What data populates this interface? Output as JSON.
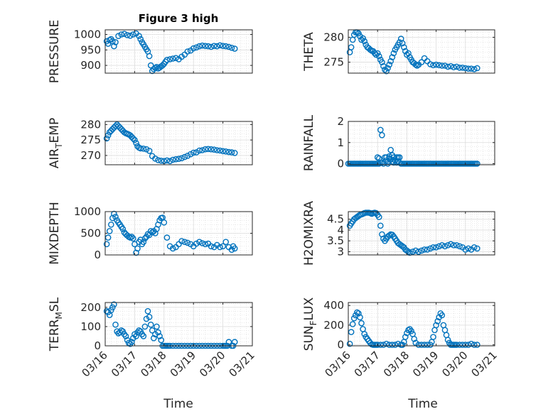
{
  "figure": {
    "title": "Figure 3 high",
    "xlabel": "Time",
    "xticks": [
      "03/16",
      "03/17",
      "03/18",
      "03/19",
      "03/20",
      "03/21"
    ],
    "marker_color": "#0072BD",
    "grid": true,
    "minor_grid": true
  },
  "chart_data": [
    {
      "type": "scatter",
      "id": "pressure",
      "ylabel": "PRESSURE",
      "ylim": [
        875,
        1015
      ],
      "yticks": [
        900,
        950,
        1000
      ],
      "xlim": [
        0,
        5
      ],
      "x": [
        0.05,
        0.1,
        0.15,
        0.2,
        0.25,
        0.3,
        0.35,
        0.45,
        0.55,
        0.65,
        0.75,
        0.85,
        0.95,
        1.05,
        1.15,
        1.2,
        1.25,
        1.3,
        1.35,
        1.4,
        1.45,
        1.5,
        1.55,
        1.6,
        1.65,
        1.7,
        1.75,
        1.8,
        1.85,
        1.9,
        1.95,
        2.0,
        2.05,
        2.1,
        2.2,
        2.3,
        2.4,
        2.5,
        2.6,
        2.7,
        2.8,
        2.9,
        3.0,
        3.1,
        3.2,
        3.3,
        3.4,
        3.5,
        3.6,
        3.7,
        3.8,
        3.9,
        4.0,
        4.1,
        4.2,
        4.3,
        4.4
      ],
      "y": [
        978,
        970,
        982,
        985,
        978,
        962,
        975,
        995,
        1000,
        1002,
        998,
        996,
        1000,
        1003,
        995,
        985,
        975,
        968,
        960,
        952,
        945,
        930,
        900,
        882,
        888,
        892,
        895,
        890,
        893,
        897,
        900,
        905,
        912,
        918,
        920,
        922,
        924,
        920,
        928,
        935,
        945,
        948,
        955,
        958,
        962,
        964,
        963,
        962,
        960,
        963,
        962,
        965,
        963,
        962,
        960,
        957,
        954
      ]
    },
    {
      "type": "scatter",
      "id": "theta",
      "ylabel": "THETA",
      "ylim": [
        272.8,
        281.5
      ],
      "yticks": [
        275,
        280
      ],
      "xlim": [
        0,
        5
      ],
      "x": [
        0.05,
        0.1,
        0.15,
        0.2,
        0.25,
        0.3,
        0.35,
        0.4,
        0.45,
        0.5,
        0.55,
        0.6,
        0.65,
        0.7,
        0.75,
        0.8,
        0.85,
        0.9,
        0.95,
        1.0,
        1.05,
        1.1,
        1.15,
        1.2,
        1.25,
        1.3,
        1.35,
        1.4,
        1.45,
        1.5,
        1.55,
        1.6,
        1.65,
        1.7,
        1.75,
        1.8,
        1.85,
        1.9,
        1.95,
        2.0,
        2.05,
        2.1,
        2.15,
        2.2,
        2.25,
        2.3,
        2.35,
        2.4,
        2.5,
        2.6,
        2.7,
        2.8,
        2.9,
        3.0,
        3.1,
        3.2,
        3.3,
        3.4,
        3.5,
        3.6,
        3.7,
        3.8,
        3.9,
        4.0,
        4.1,
        4.2,
        4.3,
        4.4
      ],
      "y": [
        277,
        278,
        279.5,
        280.5,
        281,
        281,
        280.8,
        280.2,
        279.5,
        279.8,
        279.2,
        278.5,
        278,
        277.8,
        277.5,
        277.3,
        277.2,
        276.8,
        276.5,
        276.8,
        276.2,
        275.5,
        275,
        274.2,
        273.5,
        273.2,
        273.8,
        274.5,
        275.2,
        276,
        276.8,
        277.5,
        278,
        278.5,
        279,
        279.7,
        278.8,
        278,
        277.2,
        276.5,
        276.8,
        276,
        275.5,
        275,
        274.8,
        274.5,
        274.3,
        274.5,
        275,
        275.8,
        275.2,
        274.6,
        274.4,
        274.5,
        274.4,
        274.3,
        274.3,
        274.1,
        274.2,
        274.0,
        274.1,
        273.9,
        273.9,
        273.8,
        273.7,
        273.7,
        273.6,
        273.8
      ]
    },
    {
      "type": "scatter",
      "id": "air_temp",
      "ylabel": "AIR",
      "ylabel_sub": "T",
      "ylabel_end": "EMP",
      "ylim": [
        267,
        281
      ],
      "yticks": [
        270,
        275,
        280
      ],
      "xlim": [
        0,
        5
      ],
      "x": [
        0.05,
        0.1,
        0.15,
        0.2,
        0.25,
        0.3,
        0.35,
        0.4,
        0.45,
        0.5,
        0.55,
        0.6,
        0.65,
        0.7,
        0.75,
        0.8,
        0.85,
        0.9,
        0.95,
        1.0,
        1.05,
        1.1,
        1.15,
        1.2,
        1.3,
        1.4,
        1.5,
        1.6,
        1.7,
        1.8,
        1.9,
        2.0,
        2.1,
        2.2,
        2.3,
        2.4,
        2.5,
        2.6,
        2.7,
        2.8,
        2.9,
        3.0,
        3.1,
        3.2,
        3.3,
        3.4,
        3.5,
        3.6,
        3.7,
        3.8,
        3.9,
        4.0,
        4.1,
        4.2,
        4.3,
        4.4
      ],
      "y": [
        275.5,
        276.5,
        277.5,
        278,
        278.5,
        279,
        279.5,
        280,
        279.5,
        279,
        278.5,
        278,
        277.5,
        277.2,
        277,
        276.8,
        276.5,
        276,
        275.5,
        275,
        274,
        273,
        272.5,
        272.3,
        272.2,
        272,
        271.5,
        269.8,
        269,
        268.5,
        268.3,
        268.2,
        268.4,
        268.2,
        268.6,
        268.8,
        268.9,
        269.1,
        269.5,
        269.9,
        270.4,
        270.9,
        271,
        271.6,
        271.7,
        272,
        272.1,
        272,
        271.9,
        271.7,
        271.6,
        271.4,
        271.3,
        271.1,
        271,
        270.8
      ]
    },
    {
      "type": "scatter",
      "id": "rainfall",
      "ylabel": "RAINFALL",
      "ylim": [
        -0.05,
        2
      ],
      "yticks": [
        0,
        1,
        2
      ],
      "xlim": [
        0,
        5
      ],
      "x": [
        0.0,
        0.05,
        0.1,
        0.15,
        0.2,
        0.25,
        0.3,
        0.35,
        0.4,
        0.45,
        0.5,
        0.55,
        0.6,
        0.65,
        0.7,
        0.75,
        0.8,
        0.85,
        0.9,
        0.95,
        1.0,
        1.05,
        1.1,
        1.15,
        1.2,
        1.25,
        1.3,
        1.35,
        1.4,
        1.45,
        1.5,
        1.55,
        1.6,
        1.65,
        1.7,
        1.75,
        1.8,
        1.85,
        1.9,
        1.95,
        2.0,
        2.05,
        2.1,
        2.15,
        2.2,
        2.25,
        2.3,
        2.35,
        2.4,
        2.45,
        2.5,
        2.55,
        2.6,
        2.65,
        2.7,
        2.75,
        2.8,
        2.85,
        2.9,
        2.95,
        3.0,
        3.05,
        3.1,
        3.15,
        3.2,
        3.25,
        3.3,
        3.35,
        3.4,
        3.45,
        3.5,
        3.55,
        3.6,
        3.65,
        3.7,
        3.75,
        3.8,
        3.85,
        3.9,
        3.95,
        4.0,
        4.05,
        4.1,
        4.15,
        4.2,
        4.25,
        4.3,
        4.35,
        4.4,
        1.0,
        1.05,
        1.1,
        1.15,
        1.3,
        1.35,
        1.4,
        1.45,
        1.5,
        1.55,
        1.6,
        1.65,
        1.7,
        1.75
      ],
      "y": [
        0,
        0,
        0,
        0,
        0,
        0,
        0,
        0,
        0,
        0,
        0,
        0,
        0,
        0,
        0,
        0,
        0,
        0,
        0,
        0,
        0,
        0,
        1.6,
        1.35,
        0,
        0.3,
        0.3,
        0,
        0.35,
        0.65,
        0.4,
        0.3,
        0.15,
        0.3,
        0.3,
        0.3,
        0,
        0,
        0,
        0,
        0,
        0,
        0,
        0,
        0,
        0,
        0,
        0,
        0,
        0,
        0,
        0,
        0,
        0,
        0,
        0,
        0,
        0,
        0,
        0,
        0,
        0,
        0,
        0,
        0,
        0,
        0,
        0,
        0,
        0,
        0,
        0,
        0,
        0,
        0,
        0,
        0,
        0,
        0,
        0,
        0,
        0,
        0,
        0,
        0,
        0,
        0,
        0,
        0,
        0.3,
        0.25,
        0.05,
        0.05,
        0.15,
        0.1,
        0.25,
        0.2,
        0.1,
        0.05,
        0.15,
        0.05,
        0.1,
        0.05
      ]
    },
    {
      "type": "scatter",
      "id": "mixdepth",
      "ylabel": "MIXDEPTH",
      "ylim": [
        0,
        1000
      ],
      "yticks": [
        0,
        500,
        1000
      ],
      "xlim": [
        0,
        5
      ],
      "x": [
        0.05,
        0.1,
        0.15,
        0.2,
        0.25,
        0.3,
        0.35,
        0.4,
        0.45,
        0.5,
        0.55,
        0.6,
        0.65,
        0.7,
        0.75,
        0.8,
        0.85,
        0.9,
        0.95,
        1.0,
        1.05,
        1.1,
        1.15,
        1.2,
        1.25,
        1.3,
        1.35,
        1.4,
        1.45,
        1.5,
        1.55,
        1.6,
        1.65,
        1.7,
        1.75,
        1.8,
        1.85,
        1.9,
        1.95,
        2.0,
        2.1,
        2.2,
        2.3,
        2.4,
        2.5,
        2.6,
        2.7,
        2.8,
        2.9,
        3.0,
        3.1,
        3.2,
        3.3,
        3.4,
        3.5,
        3.6,
        3.7,
        3.8,
        3.9,
        4.0,
        4.1,
        4.2,
        4.3,
        4.35,
        4.4
      ],
      "y": [
        250,
        400,
        550,
        700,
        850,
        950,
        880,
        800,
        750,
        700,
        650,
        600,
        520,
        480,
        450,
        420,
        400,
        420,
        380,
        250,
        50,
        150,
        300,
        350,
        250,
        300,
        380,
        420,
        480,
        460,
        550,
        520,
        550,
        500,
        600,
        700,
        800,
        850,
        860,
        750,
        400,
        200,
        150,
        180,
        250,
        320,
        300,
        280,
        250,
        200,
        260,
        300,
        270,
        250,
        260,
        200,
        180,
        230,
        180,
        200,
        300,
        180,
        120,
        200,
        150
      ]
    },
    {
      "type": "scatter",
      "id": "h2omixra",
      "ylabel": "H2OMIXRA",
      "ylim": [
        2.85,
        4.85
      ],
      "yticks": [
        3,
        3.5,
        4,
        4.5
      ],
      "xlim": [
        0,
        5
      ],
      "x": [
        0.05,
        0.1,
        0.15,
        0.2,
        0.25,
        0.3,
        0.35,
        0.4,
        0.45,
        0.5,
        0.55,
        0.6,
        0.65,
        0.7,
        0.75,
        0.8,
        0.85,
        0.9,
        0.95,
        1.0,
        1.05,
        1.1,
        1.15,
        1.2,
        1.25,
        1.3,
        1.35,
        1.4,
        1.45,
        1.5,
        1.55,
        1.6,
        1.65,
        1.7,
        1.75,
        1.8,
        1.85,
        1.9,
        1.95,
        2.0,
        2.05,
        2.1,
        2.2,
        2.3,
        2.4,
        2.5,
        2.6,
        2.7,
        2.8,
        2.9,
        3.0,
        3.1,
        3.2,
        3.3,
        3.4,
        3.5,
        3.6,
        3.7,
        3.8,
        3.9,
        4.0,
        4.1,
        4.2,
        4.3,
        4.4
      ],
      "y": [
        4.2,
        4.3,
        4.4,
        4.5,
        4.55,
        4.6,
        4.65,
        4.7,
        4.72,
        4.75,
        4.78,
        4.8,
        4.8,
        4.8,
        4.78,
        4.75,
        4.78,
        4.8,
        4.78,
        4.7,
        4.6,
        4.2,
        3.8,
        3.6,
        3.5,
        3.6,
        3.7,
        3.75,
        3.8,
        3.78,
        3.7,
        3.6,
        3.5,
        3.4,
        3.35,
        3.3,
        3.25,
        3.2,
        3.1,
        3.05,
        3.0,
        2.95,
        3.0,
        3.05,
        3.0,
        3.05,
        3.1,
        3.1,
        3.15,
        3.2,
        3.2,
        3.25,
        3.3,
        3.25,
        3.3,
        3.35,
        3.3,
        3.3,
        3.25,
        3.2,
        3.1,
        3.15,
        3.1,
        3.2,
        3.15
      ]
    },
    {
      "type": "scatter",
      "id": "terr_msl",
      "ylabel": "TERR",
      "ylabel_sub": "M",
      "ylabel_end": "SL",
      "ylim": [
        0,
        225
      ],
      "yticks": [
        0,
        100,
        200
      ],
      "xlim": [
        0,
        5
      ],
      "x": [
        0.05,
        0.1,
        0.15,
        0.2,
        0.25,
        0.3,
        0.35,
        0.4,
        0.45,
        0.5,
        0.55,
        0.6,
        0.65,
        0.7,
        0.75,
        0.8,
        0.85,
        0.9,
        0.95,
        1.0,
        1.05,
        1.1,
        1.15,
        1.2,
        1.25,
        1.3,
        1.35,
        1.4,
        1.45,
        1.5,
        1.55,
        1.6,
        1.65,
        1.7,
        1.75,
        1.8,
        1.85,
        1.9,
        1.95,
        2.0,
        2.05,
        2.1,
        2.15,
        2.2,
        2.3,
        2.4,
        2.5,
        2.6,
        2.7,
        2.8,
        2.9,
        3.0,
        3.1,
        3.2,
        3.3,
        3.4,
        3.5,
        3.6,
        3.7,
        3.8,
        3.9,
        4.0,
        4.05,
        4.1,
        4.15,
        4.2,
        4.3,
        4.35,
        4.4
      ],
      "y": [
        180,
        175,
        160,
        185,
        200,
        215,
        110,
        75,
        65,
        70,
        80,
        75,
        60,
        50,
        30,
        15,
        10,
        20,
        40,
        60,
        50,
        70,
        80,
        75,
        60,
        50,
        100,
        140,
        180,
        150,
        110,
        80,
        40,
        60,
        100,
        70,
        50,
        30,
        0,
        0,
        0,
        0,
        0,
        0,
        0,
        0,
        0,
        0,
        0,
        0,
        0,
        0,
        0,
        0,
        0,
        0,
        0,
        0,
        0,
        0,
        0,
        0,
        0,
        0,
        0,
        20,
        0,
        0,
        20
      ]
    },
    {
      "type": "scatter",
      "id": "sun_flux",
      "ylabel": "SUN",
      "ylabel_sub": "F",
      "ylabel_end": "LUX",
      "ylim": [
        -10,
        430
      ],
      "yticks": [
        0,
        200,
        400
      ],
      "xlim": [
        0,
        5
      ],
      "x": [
        0.05,
        0.1,
        0.15,
        0.2,
        0.25,
        0.3,
        0.35,
        0.4,
        0.45,
        0.5,
        0.55,
        0.6,
        0.65,
        0.7,
        0.75,
        0.8,
        0.85,
        0.9,
        0.95,
        1.0,
        1.1,
        1.2,
        1.3,
        1.4,
        1.5,
        1.6,
        1.7,
        1.8,
        1.85,
        1.9,
        1.95,
        2.0,
        2.05,
        2.1,
        2.15,
        2.2,
        2.25,
        2.3,
        2.4,
        2.5,
        2.6,
        2.7,
        2.8,
        2.85,
        2.9,
        2.95,
        3.0,
        3.05,
        3.1,
        3.15,
        3.2,
        3.25,
        3.3,
        3.35,
        3.4,
        3.45,
        3.5,
        3.55,
        3.6,
        3.65,
        3.7,
        3.8,
        3.9,
        4.0,
        4.1,
        4.2,
        4.3,
        4.4
      ],
      "y": [
        10,
        130,
        210,
        270,
        300,
        330,
        320,
        280,
        220,
        160,
        110,
        80,
        60,
        40,
        20,
        5,
        0,
        0,
        0,
        0,
        0,
        0,
        10,
        0,
        0,
        0,
        10,
        0,
        0,
        30,
        80,
        120,
        150,
        160,
        140,
        110,
        60,
        20,
        0,
        0,
        0,
        0,
        0,
        30,
        80,
        150,
        200,
        240,
        280,
        320,
        300,
        200,
        150,
        100,
        50,
        20,
        0,
        0,
        0,
        0,
        0,
        0,
        0,
        0,
        0,
        10,
        0,
        0
      ]
    }
  ]
}
